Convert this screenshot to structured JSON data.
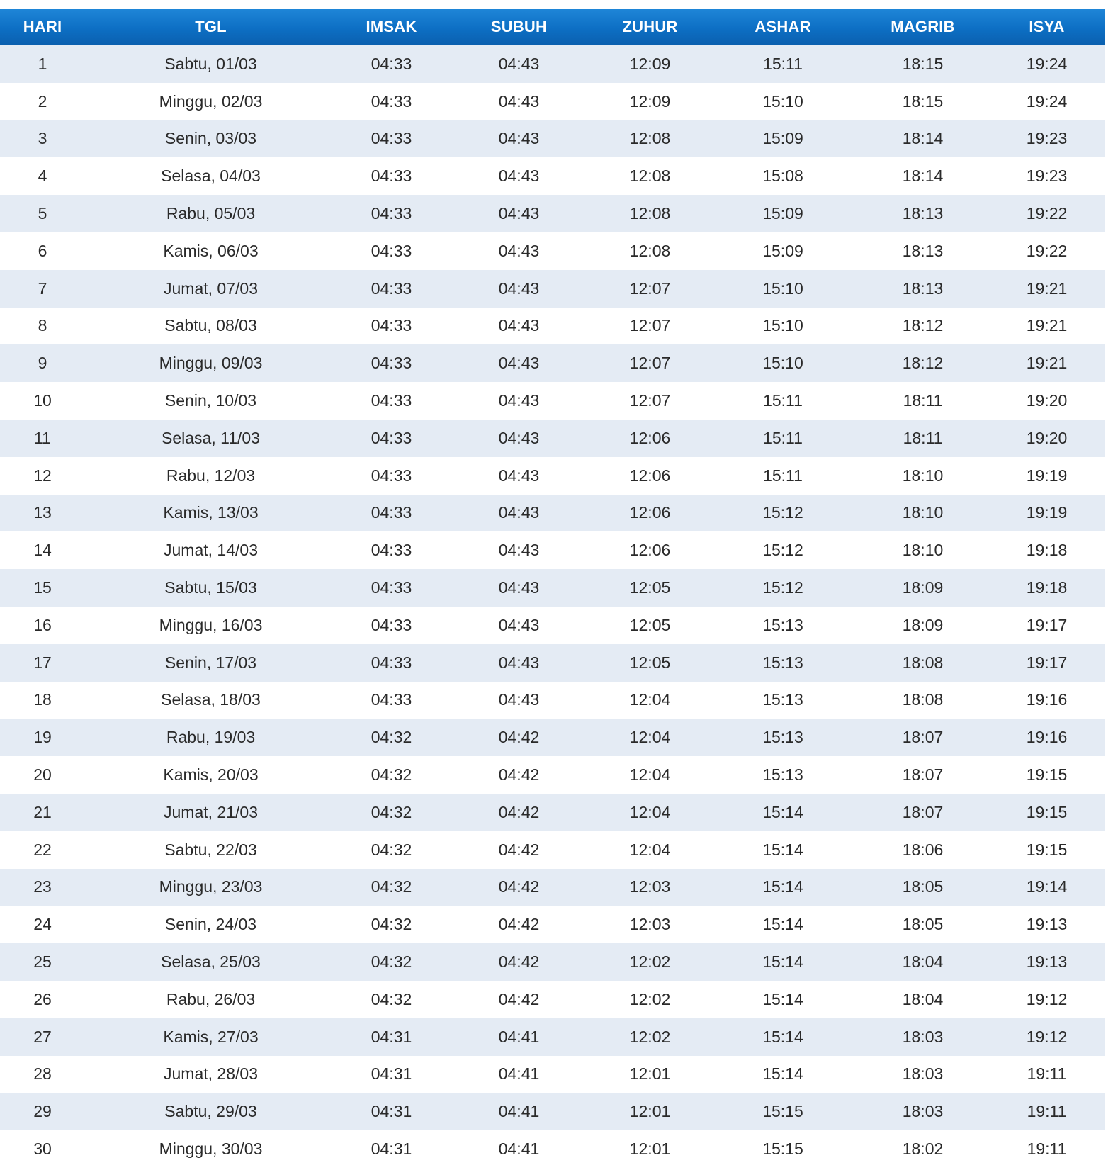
{
  "colors": {
    "header_bg": "#0d6fc4",
    "header_text": "#ffffff",
    "row_alt_bg": "#e4ebf4",
    "row_bg": "#ffffff"
  },
  "table": {
    "headers": [
      "HARI",
      "TGL",
      "IMSAK",
      "SUBUH",
      "ZUHUR",
      "ASHAR",
      "MAGRIB",
      "ISYA"
    ],
    "rows": [
      [
        "1",
        "Sabtu, 01/03",
        "04:33",
        "04:43",
        "12:09",
        "15:11",
        "18:15",
        "19:24"
      ],
      [
        "2",
        "Minggu, 02/03",
        "04:33",
        "04:43",
        "12:09",
        "15:10",
        "18:15",
        "19:24"
      ],
      [
        "3",
        "Senin, 03/03",
        "04:33",
        "04:43",
        "12:08",
        "15:09",
        "18:14",
        "19:23"
      ],
      [
        "4",
        "Selasa, 04/03",
        "04:33",
        "04:43",
        "12:08",
        "15:08",
        "18:14",
        "19:23"
      ],
      [
        "5",
        "Rabu, 05/03",
        "04:33",
        "04:43",
        "12:08",
        "15:09",
        "18:13",
        "19:22"
      ],
      [
        "6",
        "Kamis, 06/03",
        "04:33",
        "04:43",
        "12:08",
        "15:09",
        "18:13",
        "19:22"
      ],
      [
        "7",
        "Jumat, 07/03",
        "04:33",
        "04:43",
        "12:07",
        "15:10",
        "18:13",
        "19:21"
      ],
      [
        "8",
        "Sabtu, 08/03",
        "04:33",
        "04:43",
        "12:07",
        "15:10",
        "18:12",
        "19:21"
      ],
      [
        "9",
        "Minggu, 09/03",
        "04:33",
        "04:43",
        "12:07",
        "15:10",
        "18:12",
        "19:21"
      ],
      [
        "10",
        "Senin, 10/03",
        "04:33",
        "04:43",
        "12:07",
        "15:11",
        "18:11",
        "19:20"
      ],
      [
        "11",
        "Selasa, 11/03",
        "04:33",
        "04:43",
        "12:06",
        "15:11",
        "18:11",
        "19:20"
      ],
      [
        "12",
        "Rabu, 12/03",
        "04:33",
        "04:43",
        "12:06",
        "15:11",
        "18:10",
        "19:19"
      ],
      [
        "13",
        "Kamis, 13/03",
        "04:33",
        "04:43",
        "12:06",
        "15:12",
        "18:10",
        "19:19"
      ],
      [
        "14",
        "Jumat, 14/03",
        "04:33",
        "04:43",
        "12:06",
        "15:12",
        "18:10",
        "19:18"
      ],
      [
        "15",
        "Sabtu, 15/03",
        "04:33",
        "04:43",
        "12:05",
        "15:12",
        "18:09",
        "19:18"
      ],
      [
        "16",
        "Minggu, 16/03",
        "04:33",
        "04:43",
        "12:05",
        "15:13",
        "18:09",
        "19:17"
      ],
      [
        "17",
        "Senin, 17/03",
        "04:33",
        "04:43",
        "12:05",
        "15:13",
        "18:08",
        "19:17"
      ],
      [
        "18",
        "Selasa, 18/03",
        "04:33",
        "04:43",
        "12:04",
        "15:13",
        "18:08",
        "19:16"
      ],
      [
        "19",
        "Rabu, 19/03",
        "04:32",
        "04:42",
        "12:04",
        "15:13",
        "18:07",
        "19:16"
      ],
      [
        "20",
        "Kamis, 20/03",
        "04:32",
        "04:42",
        "12:04",
        "15:13",
        "18:07",
        "19:15"
      ],
      [
        "21",
        "Jumat, 21/03",
        "04:32",
        "04:42",
        "12:04",
        "15:14",
        "18:07",
        "19:15"
      ],
      [
        "22",
        "Sabtu, 22/03",
        "04:32",
        "04:42",
        "12:04",
        "15:14",
        "18:06",
        "19:15"
      ],
      [
        "23",
        "Minggu, 23/03",
        "04:32",
        "04:42",
        "12:03",
        "15:14",
        "18:05",
        "19:14"
      ],
      [
        "24",
        "Senin, 24/03",
        "04:32",
        "04:42",
        "12:03",
        "15:14",
        "18:05",
        "19:13"
      ],
      [
        "25",
        "Selasa, 25/03",
        "04:32",
        "04:42",
        "12:02",
        "15:14",
        "18:04",
        "19:13"
      ],
      [
        "26",
        "Rabu, 26/03",
        "04:32",
        "04:42",
        "12:02",
        "15:14",
        "18:04",
        "19:12"
      ],
      [
        "27",
        "Kamis, 27/03",
        "04:31",
        "04:41",
        "12:02",
        "15:14",
        "18:03",
        "19:12"
      ],
      [
        "28",
        "Jumat, 28/03",
        "04:31",
        "04:41",
        "12:01",
        "15:14",
        "18:03",
        "19:11"
      ],
      [
        "29",
        "Sabtu, 29/03",
        "04:31",
        "04:41",
        "12:01",
        "15:15",
        "18:03",
        "19:11"
      ],
      [
        "30",
        "Minggu, 30/03",
        "04:31",
        "04:41",
        "12:01",
        "15:15",
        "18:02",
        "19:11"
      ]
    ]
  }
}
